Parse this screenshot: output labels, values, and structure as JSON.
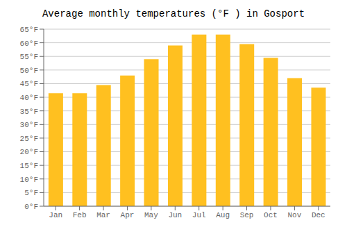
{
  "chart_data": {
    "type": "bar",
    "title": "Average monthly temperatures (°F ) in Gosport",
    "categories": [
      "Jan",
      "Feb",
      "Mar",
      "Apr",
      "May",
      "Jun",
      "Jul",
      "Aug",
      "Sep",
      "Oct",
      "Nov",
      "Dec"
    ],
    "values": [
      41.5,
      41.5,
      44.5,
      48.0,
      54.0,
      59.0,
      63.0,
      63.0,
      59.5,
      54.5,
      47.0,
      43.5
    ],
    "color": "#FFC020",
    "ylim": [
      0,
      65
    ],
    "yticks": [
      {
        "value": 0,
        "label": "0°F"
      },
      {
        "value": 5,
        "label": "5°F"
      },
      {
        "value": 10,
        "label": "10°F"
      },
      {
        "value": 15,
        "label": "15°F"
      },
      {
        "value": 20,
        "label": "20°F"
      },
      {
        "value": 25,
        "label": "25°F"
      },
      {
        "value": 30,
        "label": "30°F"
      },
      {
        "value": 35,
        "label": "35°F"
      },
      {
        "value": 40,
        "label": "40°F"
      },
      {
        "value": 45,
        "label": "45°F"
      },
      {
        "value": 50,
        "label": "50°F"
      },
      {
        "value": 55,
        "label": "55°F"
      },
      {
        "value": 60,
        "label": "60°F"
      },
      {
        "value": 65,
        "label": "65°F"
      }
    ],
    "grid": true
  }
}
